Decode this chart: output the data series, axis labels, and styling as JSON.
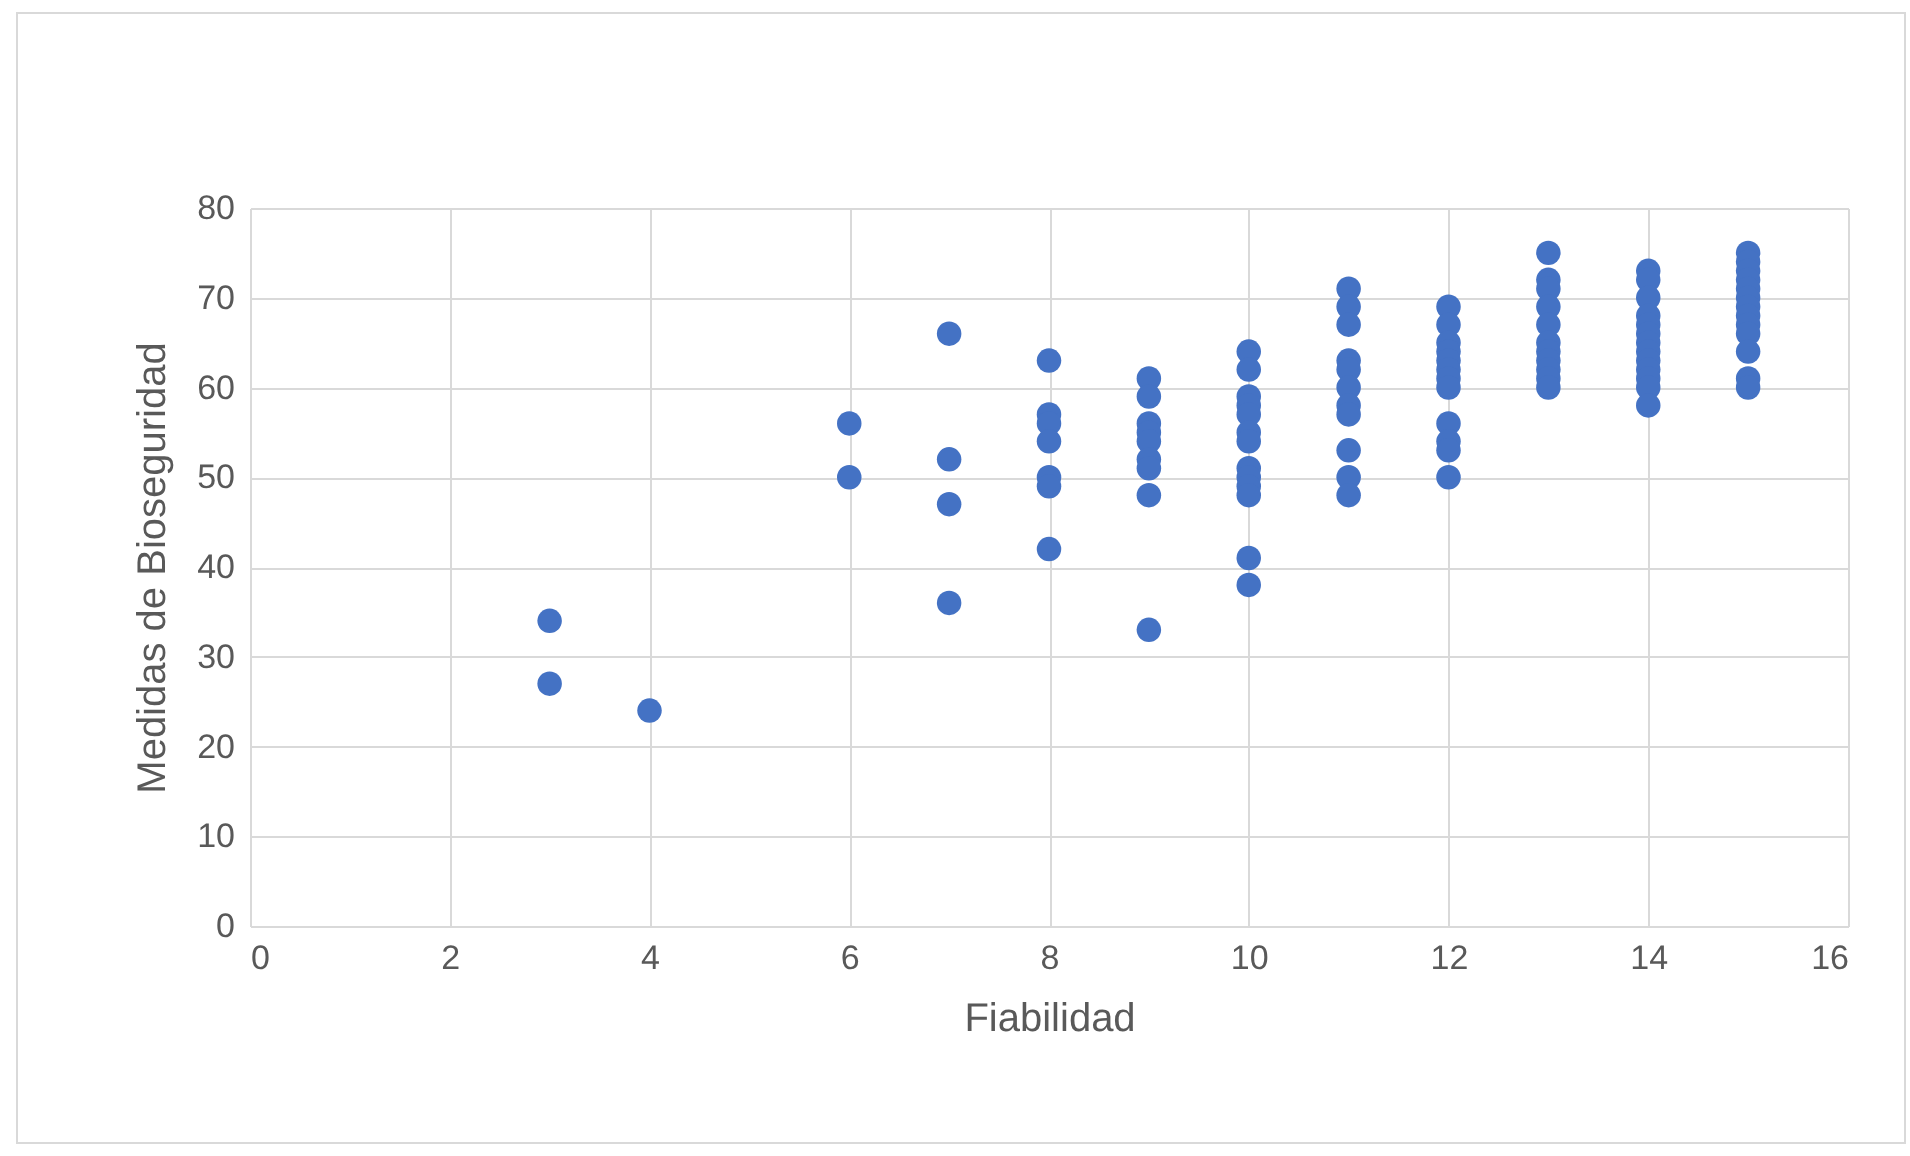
{
  "chart_data": {
    "type": "scatter",
    "xlabel": "Fiabilidad",
    "ylabel": "Medidas de Bioseguridad",
    "x": [
      3,
      3,
      4,
      6,
      6,
      7,
      7,
      7,
      7,
      8,
      8,
      8,
      8,
      8,
      8,
      8,
      9,
      9,
      9,
      9,
      9,
      9,
      9,
      9,
      9,
      10,
      10,
      10,
      10,
      10,
      10,
      10,
      10,
      10,
      10,
      10,
      10,
      10,
      11,
      11,
      11,
      11,
      11,
      11,
      11,
      11,
      11,
      11,
      11,
      12,
      12,
      12,
      12,
      12,
      12,
      12,
      12,
      12,
      12,
      12,
      12,
      13,
      13,
      13,
      13,
      13,
      13,
      13,
      13,
      13,
      13,
      13,
      14,
      14,
      14,
      14,
      14,
      14,
      14,
      14,
      14,
      14,
      14,
      14,
      14,
      15,
      15,
      15,
      15,
      15,
      15,
      15,
      15,
      15,
      15,
      15,
      15,
      15
    ],
    "series": [
      {
        "color": "#4472c4",
        "values": [
          34,
          27,
          24,
          56,
          50,
          66,
          52,
          47,
          36,
          63,
          57,
          56,
          54,
          50,
          49,
          42,
          61,
          59,
          56,
          55,
          54,
          52,
          51,
          48,
          33,
          64,
          62,
          59,
          58,
          57,
          55,
          54,
          51,
          50,
          49,
          48,
          41,
          38,
          71,
          69,
          67,
          63,
          62,
          60,
          58,
          57,
          53,
          50,
          48,
          69,
          67,
          65,
          64,
          63,
          62,
          61,
          60,
          56,
          54,
          53,
          50,
          75,
          72,
          71,
          69,
          67,
          65,
          64,
          63,
          62,
          61,
          60,
          73,
          72,
          70,
          68,
          67,
          66,
          65,
          64,
          63,
          62,
          61,
          60,
          58,
          75,
          74,
          73,
          72,
          71,
          70,
          69,
          68,
          67,
          66,
          64,
          61,
          60
        ]
      }
    ],
    "xlim": [
      0,
      16
    ],
    "xticks": [
      0,
      2,
      4,
      6,
      8,
      10,
      12,
      14,
      16
    ],
    "ylim": [
      0,
      80
    ],
    "yticks": [
      0,
      10,
      20,
      30,
      40,
      50,
      60,
      70,
      80
    ],
    "grid": true,
    "marker": "circle"
  }
}
